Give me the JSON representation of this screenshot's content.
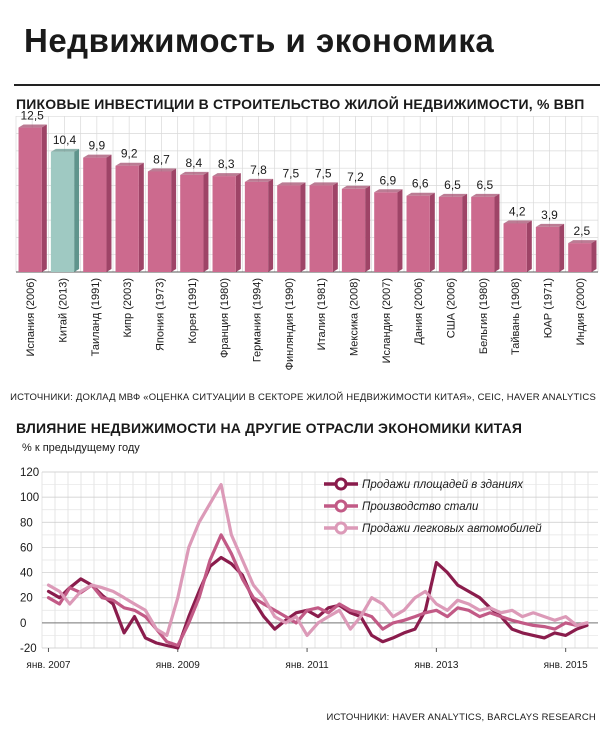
{
  "title": "Недвижимость и экономика",
  "chart_data": [
    {
      "type": "bar",
      "title": "ПИКОВЫЕ ИНВЕСТИЦИИ В СТРОИТЕЛЬСТВО ЖИЛОЙ НЕДВИЖИМОСТИ, % ВВП",
      "categories": [
        "Испания (2006)",
        "Китай (2013)",
        "Таиланд (1991)",
        "Кипр (2003)",
        "Япония (1973)",
        "Корея (1991)",
        "Франция (1980)",
        "Германия (1994)",
        "Финляндия (1990)",
        "Италия (1981)",
        "Мексика (2008)",
        "Исландия (2007)",
        "Дания (2006)",
        "США (2006)",
        "Бельгия (1980)",
        "Тайвань (1908)",
        "ЮАР (1971)",
        "Индия (2000)"
      ],
      "value_labels": [
        "12,5",
        "10,4",
        "9,9",
        "9,2",
        "8,7",
        "8,4",
        "8,3",
        "7,8",
        "7,5",
        "7,5",
        "7,2",
        "6,9",
        "6,6",
        "6,5",
        "6,5",
        "4,2",
        "3,9",
        "2,5"
      ],
      "values": [
        12.5,
        10.4,
        9.9,
        9.2,
        8.7,
        8.4,
        8.3,
        7.8,
        7.5,
        7.5,
        7.2,
        6.9,
        6.6,
        6.5,
        6.5,
        4.2,
        3.9,
        2.5
      ],
      "highlight_index": 1,
      "ylim": [
        0,
        13.5
      ],
      "grid": true,
      "colors": {
        "bar": "#cc6a8e",
        "bar_side": "#9e4467",
        "highlight": "#9fc9c2",
        "highlight_side": "#5f948c"
      },
      "source": "ИСТОЧНИКИ: ДОКЛАД МВФ «ОЦЕНКА СИТУАЦИИ В СЕКТОРЕ ЖИЛОЙ НЕДВИЖИМОСТИ КИТАЯ», CEIC, HAVER ANALYTICS"
    },
    {
      "type": "line",
      "title": "ВЛИЯНИЕ НЕДВИЖИМОСТИ НА ДРУГИЕ ОТРАСЛИ ЭКОНОМИКИ КИТАЯ",
      "ylabel": "% к предыдущему году",
      "ylim": [
        -20,
        120
      ],
      "yticks": [
        -20,
        0,
        20,
        40,
        60,
        80,
        100,
        120
      ],
      "xlim": [
        2006.9,
        2015.5
      ],
      "xticks": [
        2007,
        2009,
        2011,
        2013,
        2015
      ],
      "xtick_labels": [
        "янв. 2007",
        "янв. 2009",
        "янв. 2011",
        "янв. 2013",
        "янв. 2015"
      ],
      "grid": true,
      "legend_position": "top-right",
      "series": [
        {
          "name": "Продажи площадей в зданиях",
          "color": "#8a1c4c",
          "x": [
            2007.0,
            2007.17,
            2007.33,
            2007.5,
            2007.67,
            2007.83,
            2008.0,
            2008.17,
            2008.33,
            2008.5,
            2008.67,
            2008.83,
            2009.0,
            2009.17,
            2009.33,
            2009.5,
            2009.67,
            2009.83,
            2010.0,
            2010.17,
            2010.33,
            2010.5,
            2010.67,
            2010.83,
            2011.0,
            2011.17,
            2011.33,
            2011.5,
            2011.67,
            2011.83,
            2012.0,
            2012.17,
            2012.33,
            2012.5,
            2012.67,
            2012.83,
            2013.0,
            2013.17,
            2013.33,
            2013.5,
            2013.67,
            2013.83,
            2014.0,
            2014.17,
            2014.33,
            2014.5,
            2014.67,
            2014.83,
            2015.0,
            2015.17,
            2015.33
          ],
          "y": [
            25,
            20,
            28,
            35,
            30,
            22,
            15,
            -8,
            5,
            -12,
            -16,
            -18,
            -20,
            5,
            25,
            45,
            52,
            47,
            38,
            18,
            5,
            -5,
            2,
            8,
            10,
            5,
            12,
            14,
            8,
            5,
            -10,
            -15,
            -12,
            -8,
            -5,
            10,
            48,
            40,
            30,
            25,
            20,
            12,
            5,
            -5,
            -8,
            -10,
            -12,
            -8,
            -10,
            -5,
            -2
          ]
        },
        {
          "name": "Производство стали",
          "color": "#c25a86",
          "x": [
            2007.0,
            2007.17,
            2007.33,
            2007.5,
            2007.67,
            2007.83,
            2008.0,
            2008.17,
            2008.33,
            2008.5,
            2008.67,
            2008.83,
            2009.0,
            2009.17,
            2009.33,
            2009.5,
            2009.67,
            2009.83,
            2010.0,
            2010.17,
            2010.33,
            2010.5,
            2010.67,
            2010.83,
            2011.0,
            2011.17,
            2011.33,
            2011.5,
            2011.67,
            2011.83,
            2012.0,
            2012.17,
            2012.33,
            2012.5,
            2012.67,
            2012.83,
            2013.0,
            2013.17,
            2013.33,
            2013.5,
            2013.67,
            2013.83,
            2014.0,
            2014.17,
            2014.33,
            2014.5,
            2014.67,
            2014.83,
            2015.0,
            2015.17,
            2015.33
          ],
          "y": [
            20,
            15,
            28,
            24,
            30,
            20,
            18,
            12,
            10,
            5,
            -5,
            -15,
            -18,
            0,
            20,
            50,
            70,
            55,
            35,
            20,
            15,
            10,
            5,
            0,
            10,
            12,
            8,
            15,
            10,
            8,
            5,
            -5,
            0,
            2,
            5,
            8,
            10,
            5,
            12,
            10,
            5,
            8,
            5,
            2,
            0,
            -2,
            -3,
            -5,
            0,
            -2,
            0
          ]
        },
        {
          "name": "Продажи легковых автомобилей",
          "color": "#dc9ab8",
          "x": [
            2007.0,
            2007.17,
            2007.33,
            2007.5,
            2007.67,
            2007.83,
            2008.0,
            2008.17,
            2008.33,
            2008.5,
            2008.67,
            2008.83,
            2009.0,
            2009.17,
            2009.33,
            2009.5,
            2009.67,
            2009.83,
            2010.0,
            2010.17,
            2010.33,
            2010.5,
            2010.67,
            2010.83,
            2011.0,
            2011.17,
            2011.33,
            2011.5,
            2011.67,
            2011.83,
            2012.0,
            2012.17,
            2012.33,
            2012.5,
            2012.67,
            2012.83,
            2013.0,
            2013.17,
            2013.33,
            2013.5,
            2013.67,
            2013.83,
            2014.0,
            2014.17,
            2014.33,
            2014.5,
            2014.67,
            2014.83,
            2015.0,
            2015.17,
            2015.33
          ],
          "y": [
            30,
            25,
            15,
            25,
            30,
            28,
            25,
            20,
            15,
            10,
            -5,
            -10,
            20,
            60,
            80,
            95,
            110,
            70,
            50,
            30,
            20,
            5,
            0,
            5,
            -10,
            0,
            5,
            10,
            -5,
            5,
            20,
            15,
            5,
            10,
            20,
            25,
            15,
            10,
            18,
            15,
            10,
            12,
            8,
            10,
            5,
            8,
            5,
            2,
            5,
            -2,
            0
          ]
        }
      ],
      "source": "ИСТОЧНИКИ: HAVER ANALYTICS, BARCLAYS RESEARCH"
    }
  ]
}
